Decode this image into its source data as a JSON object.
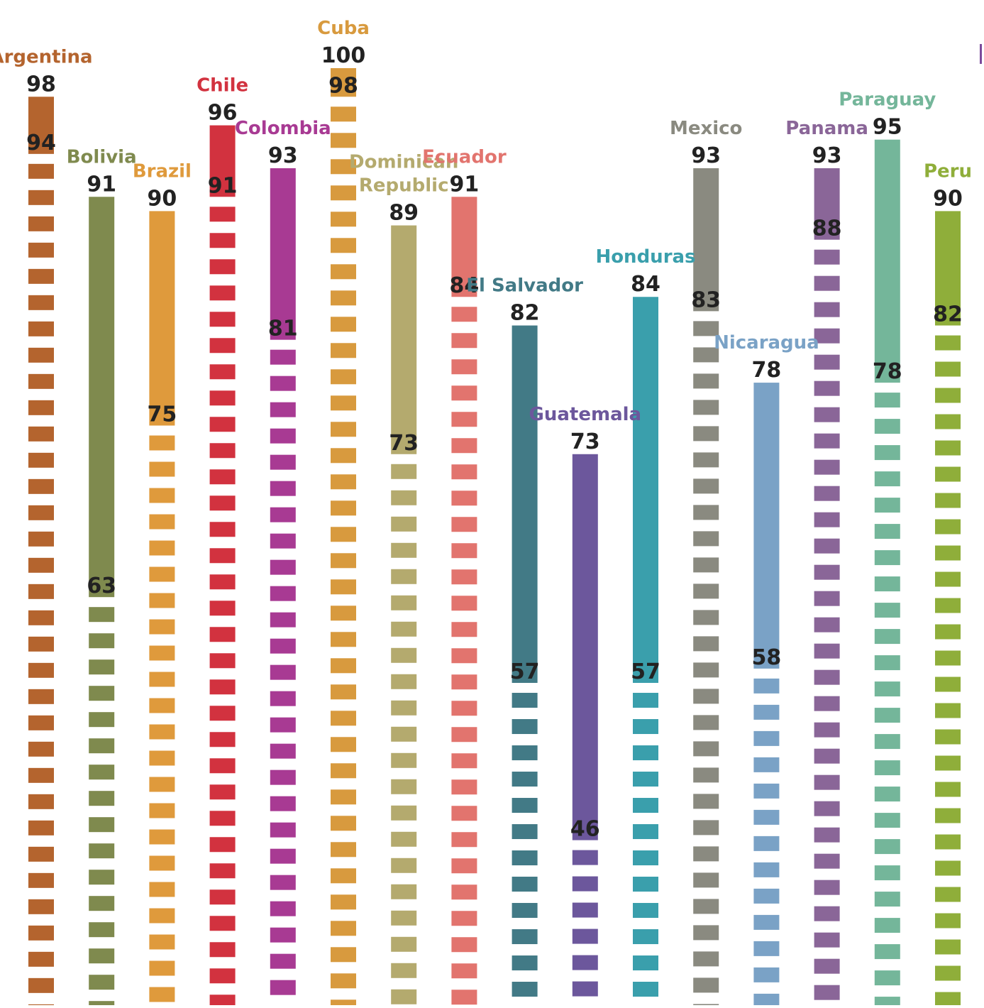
{
  "chart_data": {
    "type": "bar",
    "title": "",
    "xlabel": "",
    "ylabel": "",
    "grid": false,
    "legend": "none",
    "ylim": [
      0,
      100
    ],
    "categories": [
      "Argentina",
      "Bolivia",
      "Brazil",
      "Chile",
      "Colombia",
      "Cuba",
      "Dominican Republic",
      "Ecuador",
      "El Salvador",
      "Guatemala",
      "Honduras",
      "Mexico",
      "Nicaragua",
      "Panama",
      "Paraguay",
      "Peru"
    ],
    "series": [
      {
        "values": [
          98,
          91,
          90,
          96,
          93,
          100,
          89,
          91,
          82,
          73,
          84,
          93,
          78,
          93,
          95,
          90
        ]
      },
      {
        "values": [
          94,
          63,
          75,
          91,
          81,
          98,
          73,
          84,
          57,
          46,
          57,
          83,
          58,
          88,
          78,
          82
        ]
      }
    ],
    "bars": [
      {
        "label_lines": [
          "Argentina"
        ],
        "top": "98",
        "bottom": "94",
        "color": "#b4642e"
      },
      {
        "label_lines": [
          "Bolivia"
        ],
        "top": "91",
        "bottom": "63",
        "color": "#7f8a4e"
      },
      {
        "label_lines": [
          "Brazil"
        ],
        "top": "90",
        "bottom": "75",
        "color": "#df9a3c"
      },
      {
        "label_lines": [
          "Chile"
        ],
        "top": "96",
        "bottom": "91",
        "color": "#d2323f"
      },
      {
        "label_lines": [
          "Colombia"
        ],
        "top": "93",
        "bottom": "81",
        "color": "#a83a93"
      },
      {
        "label_lines": [
          "Cuba"
        ],
        "top": "100",
        "bottom": "98",
        "color": "#d89a3e"
      },
      {
        "label_lines": [
          "Dominican",
          "Republic"
        ],
        "top": "89",
        "bottom": "73",
        "color": "#b4aa6e"
      },
      {
        "label_lines": [
          "Ecuador"
        ],
        "top": "91",
        "bottom": "84",
        "color": "#e2746e"
      },
      {
        "label_lines": [
          "El Salvador"
        ],
        "top": "82",
        "bottom": "57",
        "color": "#427a86"
      },
      {
        "label_lines": [
          "Guatemala"
        ],
        "top": "73",
        "bottom": "46",
        "color": "#6c579c"
      },
      {
        "label_lines": [
          "Honduras"
        ],
        "top": "84",
        "bottom": "57",
        "color": "#3a9fac"
      },
      {
        "label_lines": [
          "Mexico"
        ],
        "top": "93",
        "bottom": "83",
        "color": "#8a8a80"
      },
      {
        "label_lines": [
          "Nicaragua"
        ],
        "top": "78",
        "bottom": "58",
        "color": "#7aa2c6"
      },
      {
        "label_lines": [
          "Panama"
        ],
        "top": "93",
        "bottom": "88",
        "color": "#8a6698"
      },
      {
        "label_lines": [
          "Paraguay"
        ],
        "top": "95",
        "bottom": "78",
        "color": "#74b69a"
      },
      {
        "label_lines": [
          "Peru"
        ],
        "top": "90",
        "bottom": "82",
        "color": "#8fae3a"
      }
    ]
  }
}
